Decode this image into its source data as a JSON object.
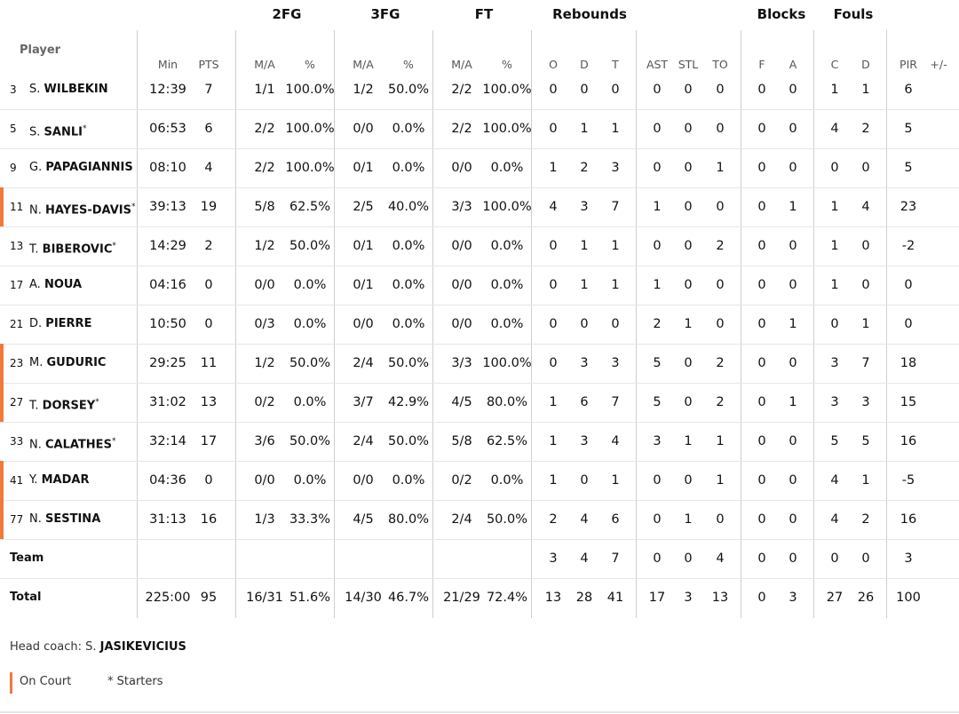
{
  "colors": {
    "on_court": "#f07a3c",
    "grid": "#cfcfcf"
  },
  "header": {
    "groups": {
      "fg2": "2FG",
      "fg3": "3FG",
      "ft": "FT",
      "rebounds": "Rebounds",
      "blocks": "Blocks",
      "fouls": "Fouls"
    },
    "player": "Player",
    "subs": {
      "min": "Min",
      "pts": "PTS",
      "fg2_ma": "M/A",
      "fg2_pct": "%",
      "fg3_ma": "M/A",
      "fg3_pct": "%",
      "ft_ma": "M/A",
      "ft_pct": "%",
      "reb_o": "O",
      "reb_d": "D",
      "reb_t": "T",
      "ast": "AST",
      "stl": "STL",
      "to": "TO",
      "blk_f": "F",
      "blk_a": "A",
      "foul_c": "C",
      "foul_d": "D",
      "pir": "PIR",
      "pm": "+/-"
    }
  },
  "players": [
    {
      "num": "3",
      "initial": "S.",
      "last": "WILBEKIN",
      "starter": false,
      "on_court": false,
      "min": "12:39",
      "pts": "7",
      "fg2_ma": "1/1",
      "fg2_pct": "100.0%",
      "fg3_ma": "1/2",
      "fg3_pct": "50.0%",
      "ft_ma": "2/2",
      "ft_pct": "100.0%",
      "reb_o": "0",
      "reb_d": "0",
      "reb_t": "0",
      "ast": "0",
      "stl": "0",
      "to": "0",
      "blk_f": "0",
      "blk_a": "0",
      "foul_c": "1",
      "foul_d": "1",
      "pir": "6",
      "pm": ""
    },
    {
      "num": "5",
      "initial": "S.",
      "last": "SANLI",
      "starter": true,
      "on_court": false,
      "min": "06:53",
      "pts": "6",
      "fg2_ma": "2/2",
      "fg2_pct": "100.0%",
      "fg3_ma": "0/0",
      "fg3_pct": "0.0%",
      "ft_ma": "2/2",
      "ft_pct": "100.0%",
      "reb_o": "0",
      "reb_d": "1",
      "reb_t": "1",
      "ast": "0",
      "stl": "0",
      "to": "0",
      "blk_f": "0",
      "blk_a": "0",
      "foul_c": "4",
      "foul_d": "2",
      "pir": "5",
      "pm": ""
    },
    {
      "num": "9",
      "initial": "G.",
      "last": "PAPAGIANNIS",
      "starter": false,
      "on_court": false,
      "min": "08:10",
      "pts": "4",
      "fg2_ma": "2/2",
      "fg2_pct": "100.0%",
      "fg3_ma": "0/1",
      "fg3_pct": "0.0%",
      "ft_ma": "0/0",
      "ft_pct": "0.0%",
      "reb_o": "1",
      "reb_d": "2",
      "reb_t": "3",
      "ast": "0",
      "stl": "0",
      "to": "1",
      "blk_f": "0",
      "blk_a": "0",
      "foul_c": "0",
      "foul_d": "0",
      "pir": "5",
      "pm": ""
    },
    {
      "num": "11",
      "initial": "N.",
      "last": "HAYES-DAVIS",
      "starter": true,
      "on_court": true,
      "min": "39:13",
      "pts": "19",
      "fg2_ma": "5/8",
      "fg2_pct": "62.5%",
      "fg3_ma": "2/5",
      "fg3_pct": "40.0%",
      "ft_ma": "3/3",
      "ft_pct": "100.0%",
      "reb_o": "4",
      "reb_d": "3",
      "reb_t": "7",
      "ast": "1",
      "stl": "0",
      "to": "0",
      "blk_f": "0",
      "blk_a": "1",
      "foul_c": "1",
      "foul_d": "4",
      "pir": "23",
      "pm": ""
    },
    {
      "num": "13",
      "initial": "T.",
      "last": "BIBEROVIC",
      "starter": true,
      "on_court": false,
      "min": "14:29",
      "pts": "2",
      "fg2_ma": "1/2",
      "fg2_pct": "50.0%",
      "fg3_ma": "0/1",
      "fg3_pct": "0.0%",
      "ft_ma": "0/0",
      "ft_pct": "0.0%",
      "reb_o": "0",
      "reb_d": "1",
      "reb_t": "1",
      "ast": "0",
      "stl": "0",
      "to": "2",
      "blk_f": "0",
      "blk_a": "0",
      "foul_c": "1",
      "foul_d": "0",
      "pir": "-2",
      "pm": ""
    },
    {
      "num": "17",
      "initial": "A.",
      "last": "NOUA",
      "starter": false,
      "on_court": false,
      "min": "04:16",
      "pts": "0",
      "fg2_ma": "0/0",
      "fg2_pct": "0.0%",
      "fg3_ma": "0/1",
      "fg3_pct": "0.0%",
      "ft_ma": "0/0",
      "ft_pct": "0.0%",
      "reb_o": "0",
      "reb_d": "1",
      "reb_t": "1",
      "ast": "1",
      "stl": "0",
      "to": "0",
      "blk_f": "0",
      "blk_a": "0",
      "foul_c": "1",
      "foul_d": "0",
      "pir": "0",
      "pm": ""
    },
    {
      "num": "21",
      "initial": "D.",
      "last": "PIERRE",
      "starter": false,
      "on_court": false,
      "min": "10:50",
      "pts": "0",
      "fg2_ma": "0/3",
      "fg2_pct": "0.0%",
      "fg3_ma": "0/0",
      "fg3_pct": "0.0%",
      "ft_ma": "0/0",
      "ft_pct": "0.0%",
      "reb_o": "0",
      "reb_d": "0",
      "reb_t": "0",
      "ast": "2",
      "stl": "1",
      "to": "0",
      "blk_f": "0",
      "blk_a": "1",
      "foul_c": "0",
      "foul_d": "1",
      "pir": "0",
      "pm": ""
    },
    {
      "num": "23",
      "initial": "M.",
      "last": "GUDURIC",
      "starter": false,
      "on_court": true,
      "min": "29:25",
      "pts": "11",
      "fg2_ma": "1/2",
      "fg2_pct": "50.0%",
      "fg3_ma": "2/4",
      "fg3_pct": "50.0%",
      "ft_ma": "3/3",
      "ft_pct": "100.0%",
      "reb_o": "0",
      "reb_d": "3",
      "reb_t": "3",
      "ast": "5",
      "stl": "0",
      "to": "2",
      "blk_f": "0",
      "blk_a": "0",
      "foul_c": "3",
      "foul_d": "7",
      "pir": "18",
      "pm": ""
    },
    {
      "num": "27",
      "initial": "T.",
      "last": "DORSEY",
      "starter": true,
      "on_court": true,
      "min": "31:02",
      "pts": "13",
      "fg2_ma": "0/2",
      "fg2_pct": "0.0%",
      "fg3_ma": "3/7",
      "fg3_pct": "42.9%",
      "ft_ma": "4/5",
      "ft_pct": "80.0%",
      "reb_o": "1",
      "reb_d": "6",
      "reb_t": "7",
      "ast": "5",
      "stl": "0",
      "to": "2",
      "blk_f": "0",
      "blk_a": "1",
      "foul_c": "3",
      "foul_d": "3",
      "pir": "15",
      "pm": ""
    },
    {
      "num": "33",
      "initial": "N.",
      "last": "CALATHES",
      "starter": true,
      "on_court": false,
      "min": "32:14",
      "pts": "17",
      "fg2_ma": "3/6",
      "fg2_pct": "50.0%",
      "fg3_ma": "2/4",
      "fg3_pct": "50.0%",
      "ft_ma": "5/8",
      "ft_pct": "62.5%",
      "reb_o": "1",
      "reb_d": "3",
      "reb_t": "4",
      "ast": "3",
      "stl": "1",
      "to": "1",
      "blk_f": "0",
      "blk_a": "0",
      "foul_c": "5",
      "foul_d": "5",
      "pir": "16",
      "pm": ""
    },
    {
      "num": "41",
      "initial": "Y.",
      "last": "MADAR",
      "starter": false,
      "on_court": true,
      "min": "04:36",
      "pts": "0",
      "fg2_ma": "0/0",
      "fg2_pct": "0.0%",
      "fg3_ma": "0/0",
      "fg3_pct": "0.0%",
      "ft_ma": "0/2",
      "ft_pct": "0.0%",
      "reb_o": "1",
      "reb_d": "0",
      "reb_t": "1",
      "ast": "0",
      "stl": "0",
      "to": "1",
      "blk_f": "0",
      "blk_a": "0",
      "foul_c": "4",
      "foul_d": "1",
      "pir": "-5",
      "pm": ""
    },
    {
      "num": "77",
      "initial": "N.",
      "last": "SESTINA",
      "starter": false,
      "on_court": true,
      "min": "31:13",
      "pts": "16",
      "fg2_ma": "1/3",
      "fg2_pct": "33.3%",
      "fg3_ma": "4/5",
      "fg3_pct": "80.0%",
      "ft_ma": "2/4",
      "ft_pct": "50.0%",
      "reb_o": "2",
      "reb_d": "4",
      "reb_t": "6",
      "ast": "0",
      "stl": "1",
      "to": "0",
      "blk_f": "0",
      "blk_a": "0",
      "foul_c": "4",
      "foul_d": "2",
      "pir": "16",
      "pm": ""
    }
  ],
  "team_row": {
    "label": "Team",
    "min": "",
    "pts": "",
    "fg2_ma": "",
    "fg2_pct": "",
    "fg3_ma": "",
    "fg3_pct": "",
    "ft_ma": "",
    "ft_pct": "",
    "reb_o": "3",
    "reb_d": "4",
    "reb_t": "7",
    "ast": "0",
    "stl": "0",
    "to": "4",
    "blk_f": "0",
    "blk_a": "0",
    "foul_c": "0",
    "foul_d": "0",
    "pir": "3",
    "pm": ""
  },
  "total_row": {
    "label": "Total",
    "min": "225:00",
    "pts": "95",
    "fg2_ma": "16/31",
    "fg2_pct": "51.6%",
    "fg3_ma": "14/30",
    "fg3_pct": "46.7%",
    "ft_ma": "21/29",
    "ft_pct": "72.4%",
    "reb_o": "13",
    "reb_d": "28",
    "reb_t": "41",
    "ast": "17",
    "stl": "3",
    "to": "13",
    "blk_f": "0",
    "blk_a": "3",
    "foul_c": "27",
    "foul_d": "26",
    "pir": "100",
    "pm": ""
  },
  "footer": {
    "coach_label": "Head coach: ",
    "coach_initial": "S.",
    "coach_last": "JASIKEVICIUS",
    "legend_on_court": "On Court",
    "legend_starters": "* Starters"
  }
}
